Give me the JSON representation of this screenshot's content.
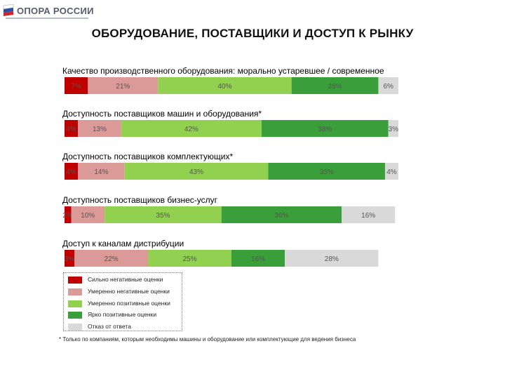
{
  "logo": {
    "text": "ОПОРА РОССИИ"
  },
  "title": "ОБОРУДОВАНИЕ, ПОСТАВЩИКИ И ДОСТУП К РЫНКУ",
  "colors": {
    "strong_negative": "#c00000",
    "moderate_negative": "#db9998",
    "moderate_positive": "#92d050",
    "bright_positive": "#3a9e3a",
    "no_answer": "#d9d9d9"
  },
  "chart_data": {
    "type": "bar",
    "orientation": "horizontal-stacked-100",
    "categories": [
      "Качество производственного оборудования: морально устаревшее / современное",
      "Доступность поставщиков машин и оборудования*",
      "Доступность поставщиков комплектующих*",
      "Доступность поставщиков бизнес-услуг",
      "Доступ к каналам дистрибуции"
    ],
    "series": [
      {
        "name": "Сильно негативные оценки",
        "key": "strong_negative",
        "values": [
          7,
          4,
          4,
          2,
          3
        ],
        "labels": [
          "7%",
          "4%",
          "4%",
          "2%",
          "3%"
        ]
      },
      {
        "name": "Умеренно негативные оценки",
        "key": "moderate_negative",
        "values": [
          21,
          13,
          14,
          10,
          22
        ],
        "labels": [
          "21%",
          "13%",
          "14%",
          "10%",
          "22%"
        ]
      },
      {
        "name": "Умеренно позитивные оценки",
        "key": "moderate_positive",
        "values": [
          40,
          42,
          43,
          35,
          25
        ],
        "labels": [
          "40%",
          "42%",
          "43%",
          "35%",
          "25%"
        ]
      },
      {
        "name": "Ярко позитивные оценки",
        "key": "bright_positive",
        "values": [
          26,
          38,
          35,
          36,
          16
        ],
        "labels": [
          "26%",
          "38%",
          "35%",
          "36%",
          "16%"
        ]
      },
      {
        "name": "Отказ от ответа",
        "key": "no_answer",
        "values": [
          6,
          3,
          4,
          16,
          28
        ],
        "labels": [
          "6%",
          "3%",
          "4%",
          "16%",
          "28%"
        ]
      }
    ],
    "xlim": [
      0,
      100
    ]
  },
  "legend": [
    "Сильно негативные оценки",
    "Умеренно негативные оценки",
    "Умеренно позитивные оценки",
    "Ярко позитивные оценки",
    "Отказ от ответа"
  ],
  "footnote": "* Только по компаниям, которым необходимы машины и оборудование или комплектующие для ведения бизнеса"
}
